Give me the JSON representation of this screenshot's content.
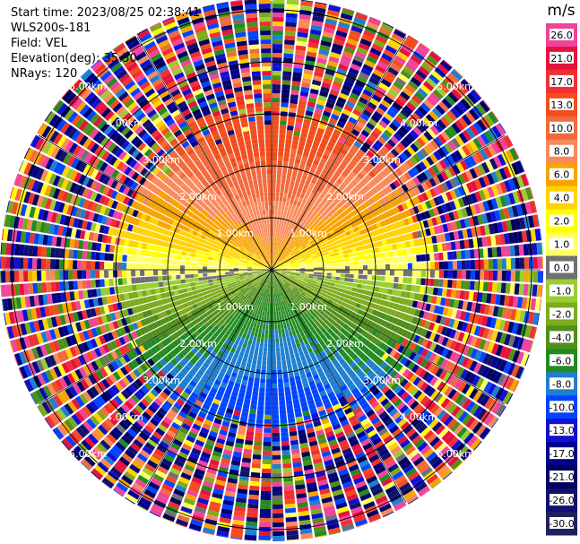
{
  "header": {
    "start_time": "Start time: 2023/08/25 02:38:41",
    "instrument": "WLS200s-181",
    "field": "Field: VEL",
    "elevation": "Elevation(deg): 35.30",
    "nrays": "NRays: 120"
  },
  "colorbar": {
    "unit": "m/s",
    "levels": [
      "26.0",
      "21.0",
      "17.0",
      "13.0",
      "10.0",
      "8.0",
      "6.0",
      "4.0",
      "2.0",
      "1.0",
      "0.0",
      "-1.0",
      "-2.0",
      "-4.0",
      "-6.0",
      "-8.0",
      "-10.0",
      "-13.0",
      "-17.0",
      "-21.0",
      "-26.0",
      "-30.0"
    ],
    "colors": [
      "#f0449a",
      "#e4133d",
      "#f03030",
      "#f24d1c",
      "#f26a3c",
      "#fa8a5a",
      "#f7a400",
      "#ffd200",
      "#ffff00",
      "#ffff66",
      "#707070",
      "#9acd32",
      "#7daa1e",
      "#4f8f1a",
      "#228b22",
      "#1e7fd0",
      "#0044ff",
      "#1010d0",
      "#000088",
      "#000060",
      "#10106e",
      "#202060"
    ]
  },
  "chart_data": {
    "type": "heatmap",
    "projection": "polar PPI",
    "nrays": 120,
    "range_rings_km": [
      1.0,
      2.0,
      3.0,
      4.0,
      5.0
    ],
    "ring_labels": [
      "1.00km",
      "2.00km",
      "3.00km",
      "4.00km",
      "5.00km"
    ],
    "value_unit": "m/s",
    "value_range": [
      -30.0,
      26.0
    ]
  }
}
